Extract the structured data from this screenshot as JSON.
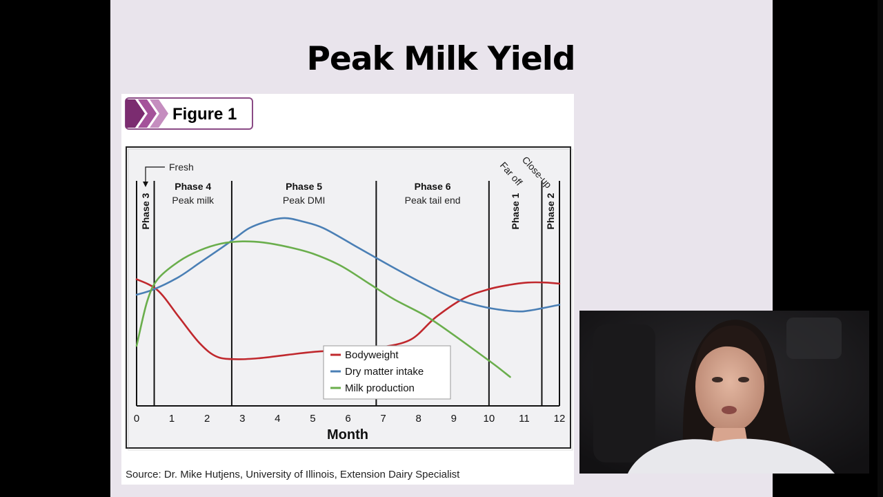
{
  "slide": {
    "title": "Peak Milk Yield"
  },
  "figure": {
    "badge_label": "Figure 1",
    "source": "Source: Dr. Mike Hutjens, University of Illinois, Extension Dairy Specialist"
  },
  "chart_data": {
    "type": "line",
    "title": "",
    "xlabel": "Month",
    "ylabel": "",
    "xlim": [
      0,
      12
    ],
    "x_ticks": [
      "0",
      "1",
      "2",
      "3",
      "4",
      "5",
      "6",
      "7",
      "8",
      "9",
      "10",
      "11",
      "12"
    ],
    "y_ticks_shown": false,
    "grid": false,
    "legend_position": "lower-center",
    "phase_dividers": [
      0.5,
      2.7,
      6.8,
      10.0,
      11.5
    ],
    "phases": [
      {
        "name": "Phase 3",
        "sub": "",
        "vertical": true
      },
      {
        "name": "Phase 4",
        "sub": "Peak milk",
        "vertical": false
      },
      {
        "name": "Phase 5",
        "sub": "Peak DMI",
        "vertical": false
      },
      {
        "name": "Phase 6",
        "sub": "Peak tail end",
        "vertical": false
      },
      {
        "name": "Phase 1",
        "sub": "",
        "vertical": true
      },
      {
        "name": "Phase 2",
        "sub": "",
        "vertical": true
      }
    ],
    "annotations": {
      "fresh": "Fresh",
      "far_off": "Far off",
      "close_up": "Close-up"
    },
    "series": [
      {
        "name": "Bodyweight",
        "color": "#c0282d",
        "points": [
          [
            0,
            57
          ],
          [
            0.6,
            52
          ],
          [
            1.2,
            40
          ],
          [
            1.8,
            28
          ],
          [
            2.3,
            22
          ],
          [
            2.9,
            21
          ],
          [
            3.5,
            21.5
          ],
          [
            4.3,
            23
          ],
          [
            5.2,
            24.5
          ],
          [
            6.3,
            25
          ],
          [
            7.0,
            26.5
          ],
          [
            7.8,
            30
          ],
          [
            8.5,
            40
          ],
          [
            9.3,
            48.5
          ],
          [
            10.0,
            52.5
          ],
          [
            10.6,
            54.5
          ],
          [
            11.1,
            55.5
          ],
          [
            11.6,
            55.5
          ],
          [
            12,
            55
          ]
        ]
      },
      {
        "name": "Dry matter intake",
        "color": "#4a7fb5",
        "points": [
          [
            0,
            50
          ],
          [
            0.5,
            52.5
          ],
          [
            1.2,
            58
          ],
          [
            1.8,
            64.5
          ],
          [
            2.4,
            71
          ],
          [
            2.8,
            75.5
          ],
          [
            3.2,
            80
          ],
          [
            3.7,
            83
          ],
          [
            4.2,
            84.5
          ],
          [
            4.7,
            83
          ],
          [
            5.3,
            80
          ],
          [
            6.2,
            72
          ],
          [
            7.2,
            63
          ],
          [
            8.2,
            54.5
          ],
          [
            9.0,
            48.5
          ],
          [
            9.6,
            45.5
          ],
          [
            10.2,
            43.5
          ],
          [
            10.8,
            42.5
          ],
          [
            11.2,
            43
          ],
          [
            12,
            45.5
          ]
        ]
      },
      {
        "name": "Milk production",
        "color": "#6aae4c",
        "points": [
          [
            0,
            27
          ],
          [
            0.3,
            47
          ],
          [
            0.6,
            57
          ],
          [
            1.2,
            65
          ],
          [
            1.8,
            70
          ],
          [
            2.4,
            73
          ],
          [
            3.0,
            74
          ],
          [
            3.6,
            73.5
          ],
          [
            4.3,
            71.5
          ],
          [
            5.0,
            68.5
          ],
          [
            5.8,
            63
          ],
          [
            6.6,
            55
          ],
          [
            7.3,
            48
          ],
          [
            8.2,
            40.5
          ],
          [
            8.9,
            33
          ],
          [
            9.6,
            25
          ],
          [
            10.2,
            18
          ],
          [
            10.6,
            13
          ]
        ]
      }
    ]
  }
}
